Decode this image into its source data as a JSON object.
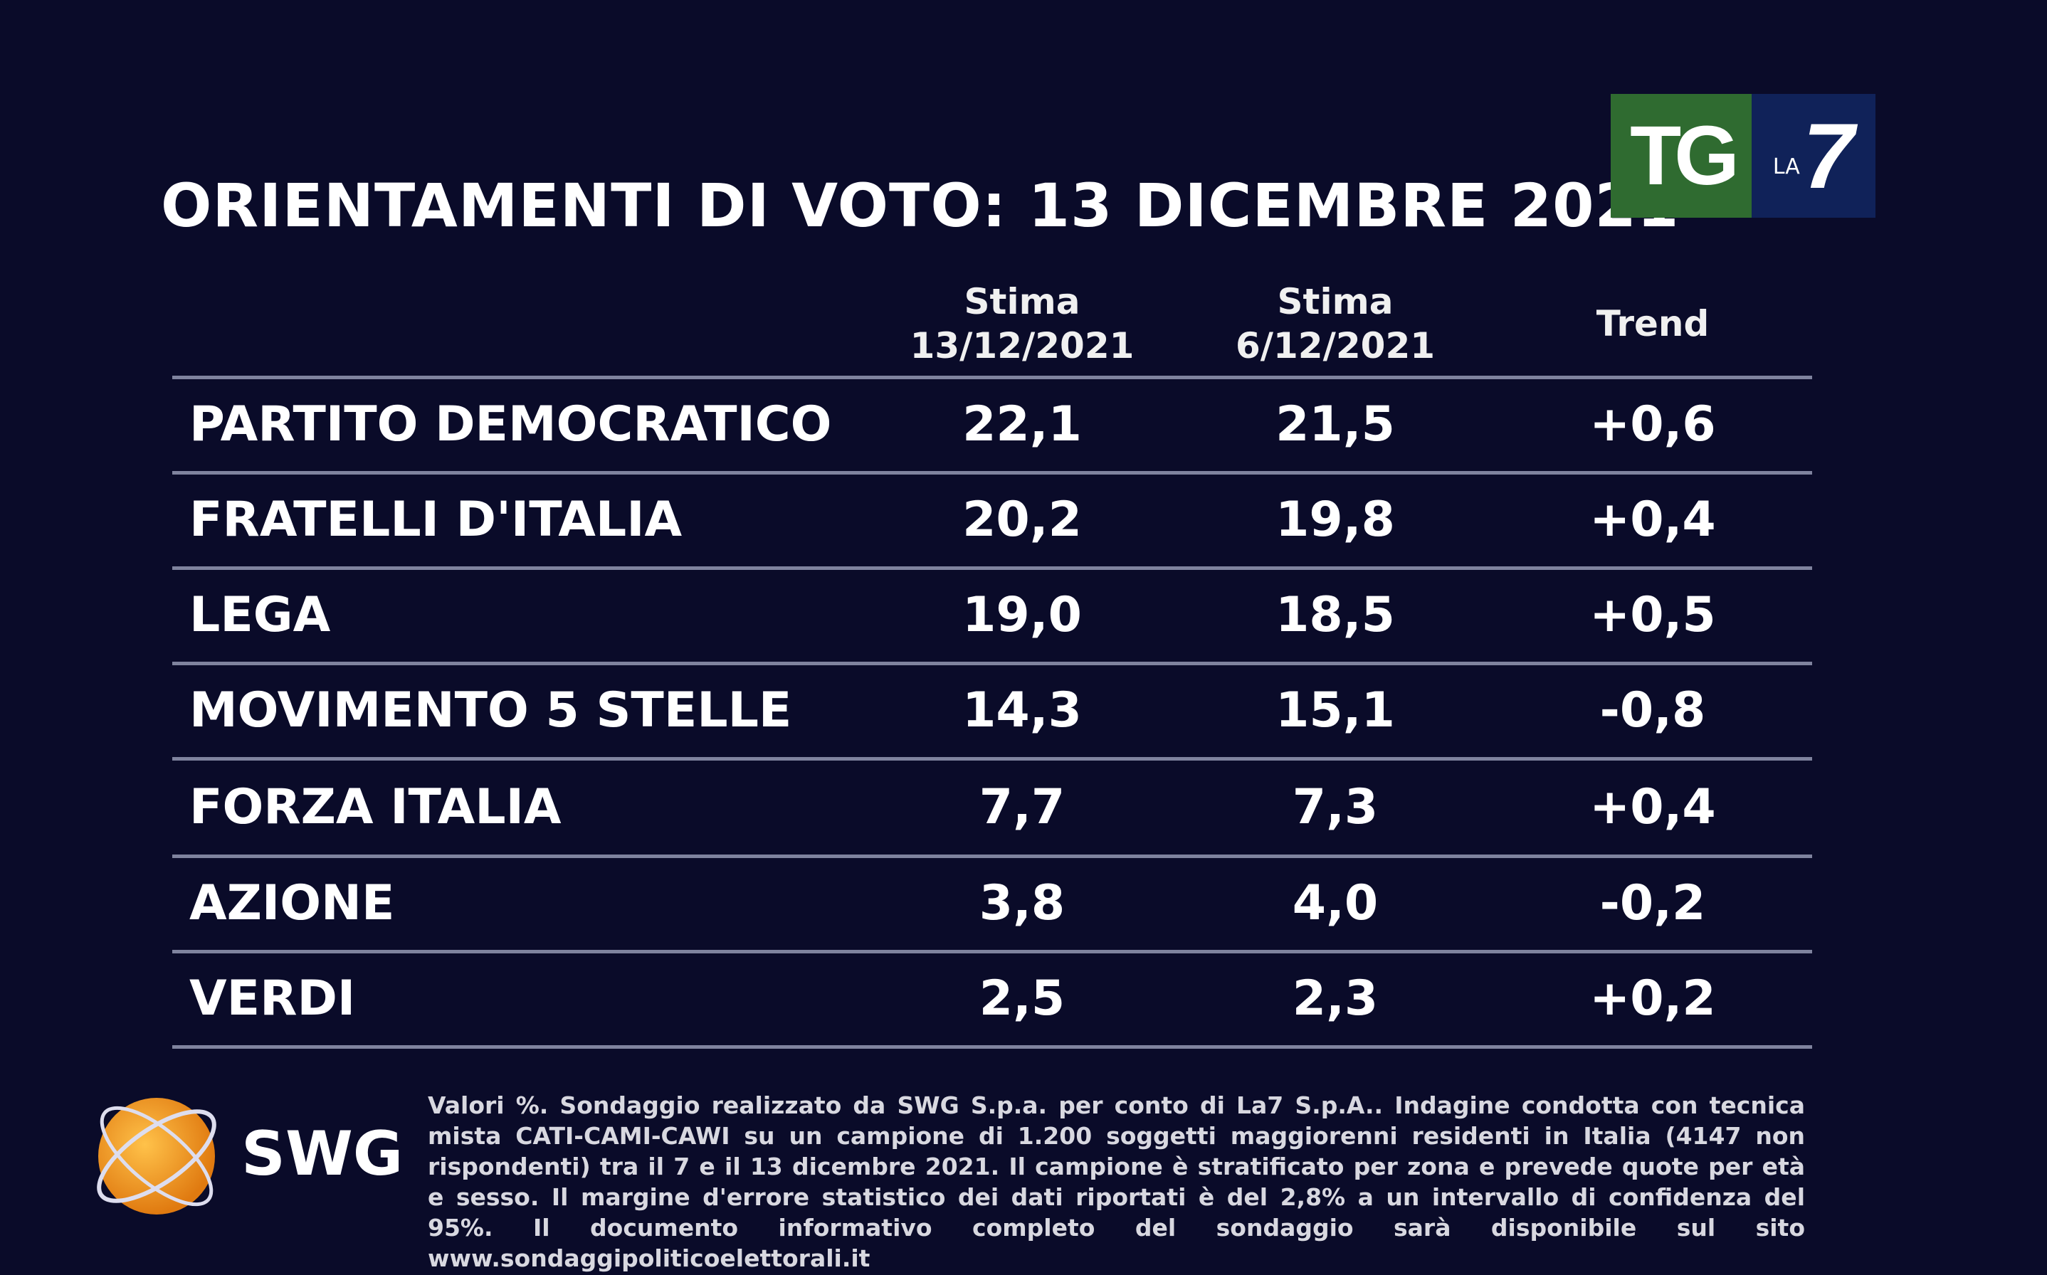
{
  "chart_data": {
    "type": "table",
    "title": "ORIENTAMENTI DI VOTO: 13 DICEMBRE 2021",
    "columns": [
      {
        "label_line1": "Stima",
        "label_line2": "13/12/2021"
      },
      {
        "label_line1": "Stima",
        "label_line2": "6/12/2021"
      },
      {
        "label_line1": "Trend",
        "label_line2": ""
      }
    ],
    "rows": [
      {
        "party": "PARTITO DEMOCRATICO",
        "current": "22,1",
        "previous": "21,5",
        "trend": "+0,6"
      },
      {
        "party": "FRATELLI D'ITALIA",
        "current": "20,2",
        "previous": "19,8",
        "trend": "+0,4"
      },
      {
        "party": "LEGA",
        "current": "19,0",
        "previous": "18,5",
        "trend": "+0,5"
      },
      {
        "party": "MOVIMENTO 5 STELLE",
        "current": "14,3",
        "previous": "15,1",
        "trend": "-0,8"
      },
      {
        "party": "FORZA ITALIA",
        "current": "7,7",
        "previous": "7,3",
        "trend": "+0,4"
      },
      {
        "party": "AZIONE",
        "current": "3,8",
        "previous": "4,0",
        "trend": "-0,2"
      },
      {
        "party": "VERDI",
        "current": "2,5",
        "previous": "2,3",
        "trend": "+0,2"
      }
    ]
  },
  "logo": {
    "tg": "TG",
    "la": "LA",
    "seven": "7",
    "green": "#2f6b30",
    "blue": "#102259"
  },
  "swg": {
    "name": "SWG"
  },
  "footnote": "Valori %. Sondaggio realizzato da SWG S.p.a. per conto di La7 S.p.A.. Indagine condotta con tecnica mista CATI-CAMI-CAWI su un campione di 1.200 soggetti maggiorenni residenti in Italia (4147 non rispondenti) tra il 7 e il 13 dicembre 2021. Il campione è stratificato per zona e prevede quote per età e sesso. Il margine d'errore statistico dei dati riportati è del 2,8% a un intervallo di confidenza del 95%. Il documento informativo completo del sondaggio sarà disponibile sul sito www.sondaggipoliticoelettorali.it"
}
